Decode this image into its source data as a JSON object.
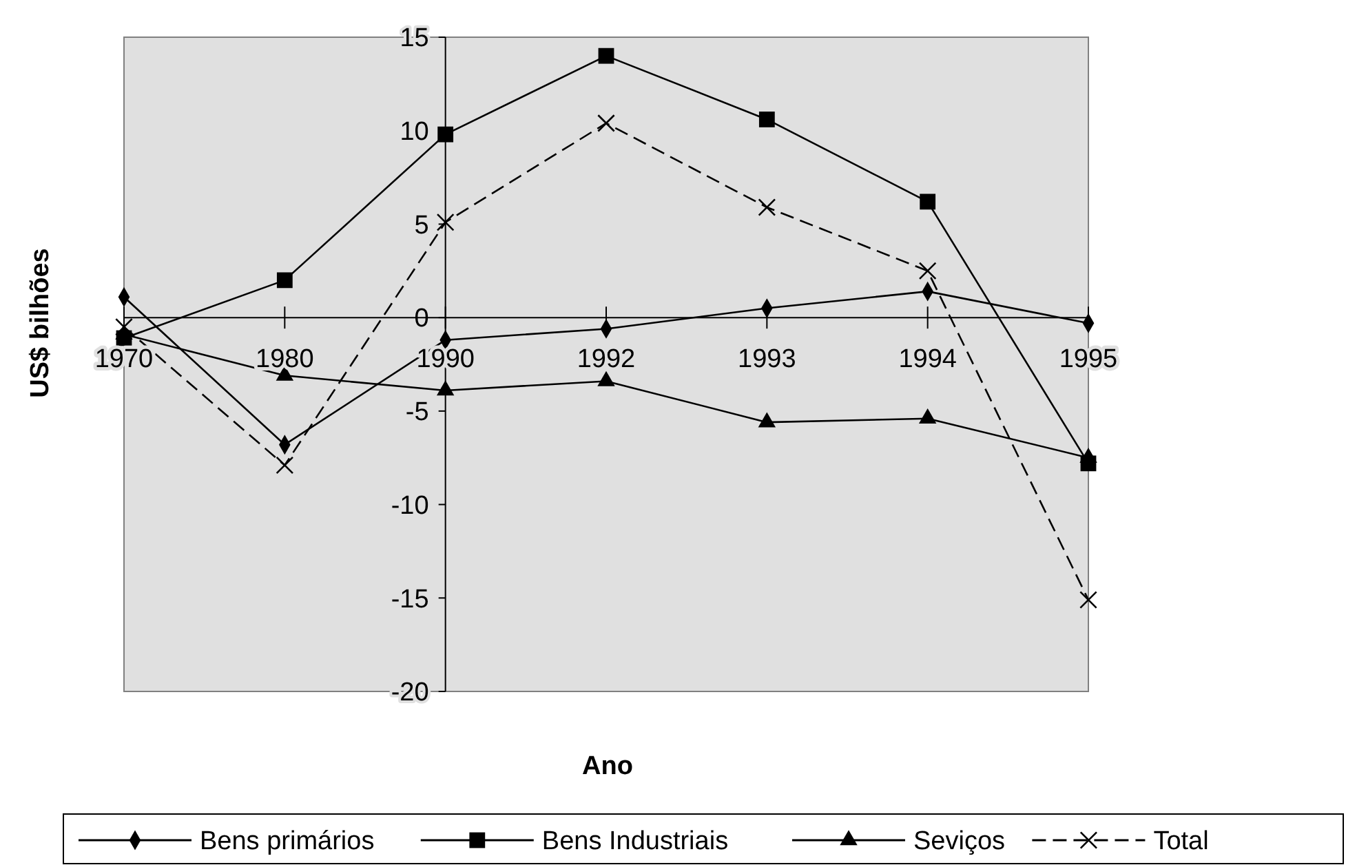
{
  "chart_data": {
    "type": "line",
    "xlabel": "Ano",
    "ylabel": "US$ bilhões",
    "categories": [
      "1970",
      "1980",
      "1990",
      "1992",
      "1993",
      "1994",
      "1995"
    ],
    "ylim": [
      -20,
      15
    ],
    "yticks": [
      -20,
      -15,
      -10,
      -5,
      0,
      5,
      10,
      15
    ],
    "grid": false,
    "legend": "bottom",
    "series": [
      {
        "name": "Bens primários",
        "color": "#000000",
        "marker": "diamond",
        "line_style": "solid",
        "values": [
          1.1,
          -6.8,
          -1.2,
          -0.6,
          0.5,
          1.4,
          -0.3
        ]
      },
      {
        "name": "Bens Industriais",
        "color": "#000000",
        "marker": "square",
        "line_style": "solid",
        "values": [
          -1.1,
          2.0,
          9.8,
          14.0,
          10.6,
          6.2,
          -7.8
        ]
      },
      {
        "name": "Seviços",
        "color": "#000000",
        "marker": "triangle",
        "line_style": "solid",
        "values": [
          -0.9,
          -3.1,
          -3.9,
          -3.4,
          -5.6,
          -5.4,
          -7.5
        ]
      },
      {
        "name": "Total",
        "color": "#000000",
        "marker": "cross",
        "line_style": "dashed",
        "values": [
          -0.5,
          -7.9,
          5.1,
          10.4,
          5.9,
          2.5,
          -15.1
        ]
      }
    ]
  }
}
